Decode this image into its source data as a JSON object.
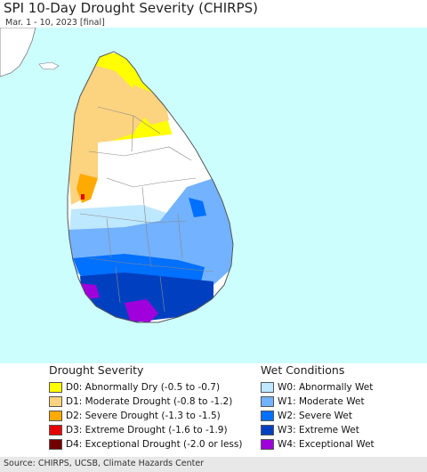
{
  "title": "SPI 10-Day Drought Severity (CHIRPS)",
  "subtitle": "Mar. 1 - 10, 2023 [final]",
  "colors": {
    "ocean": "#cdfefe",
    "land_outside": "#ffffff",
    "d0": "#ffff00",
    "d1": "#fcd37f",
    "d2": "#ffaa00",
    "d3": "#e60000",
    "d4": "#730000",
    "w0": "#bee8ff",
    "w1": "#73b2ff",
    "w2": "#0070ff",
    "w3": "#0040c0",
    "w4": "#a000dc",
    "border": "#777777"
  },
  "legend_drought": {
    "heading": "Drought Severity",
    "items": [
      {
        "key": "d0",
        "label": "D0: Abnormally Dry (-0.5 to -0.7)"
      },
      {
        "key": "d1",
        "label": "D1: Moderate Drought (-0.8 to -1.2)"
      },
      {
        "key": "d2",
        "label": "D2: Severe Drought (-1.3 to -1.5)"
      },
      {
        "key": "d3",
        "label": "D3: Extreme Drought (-1.6 to -1.9)"
      },
      {
        "key": "d4",
        "label": "D4: Exceptional Drought (-2.0 or less)"
      }
    ]
  },
  "legend_wet": {
    "heading": "Wet Conditions",
    "items": [
      {
        "key": "w0",
        "label": "W0: Abnormally Wet"
      },
      {
        "key": "w1",
        "label": "W1: Moderate Wet"
      },
      {
        "key": "w2",
        "label": "W2: Severe Wet"
      },
      {
        "key": "w3",
        "label": "W3: Extreme Wet"
      },
      {
        "key": "w4",
        "label": "W4: Exceptional Wet"
      }
    ]
  },
  "footer": "Source: CHIRPS, UCSB, Climate Hazards Center"
}
